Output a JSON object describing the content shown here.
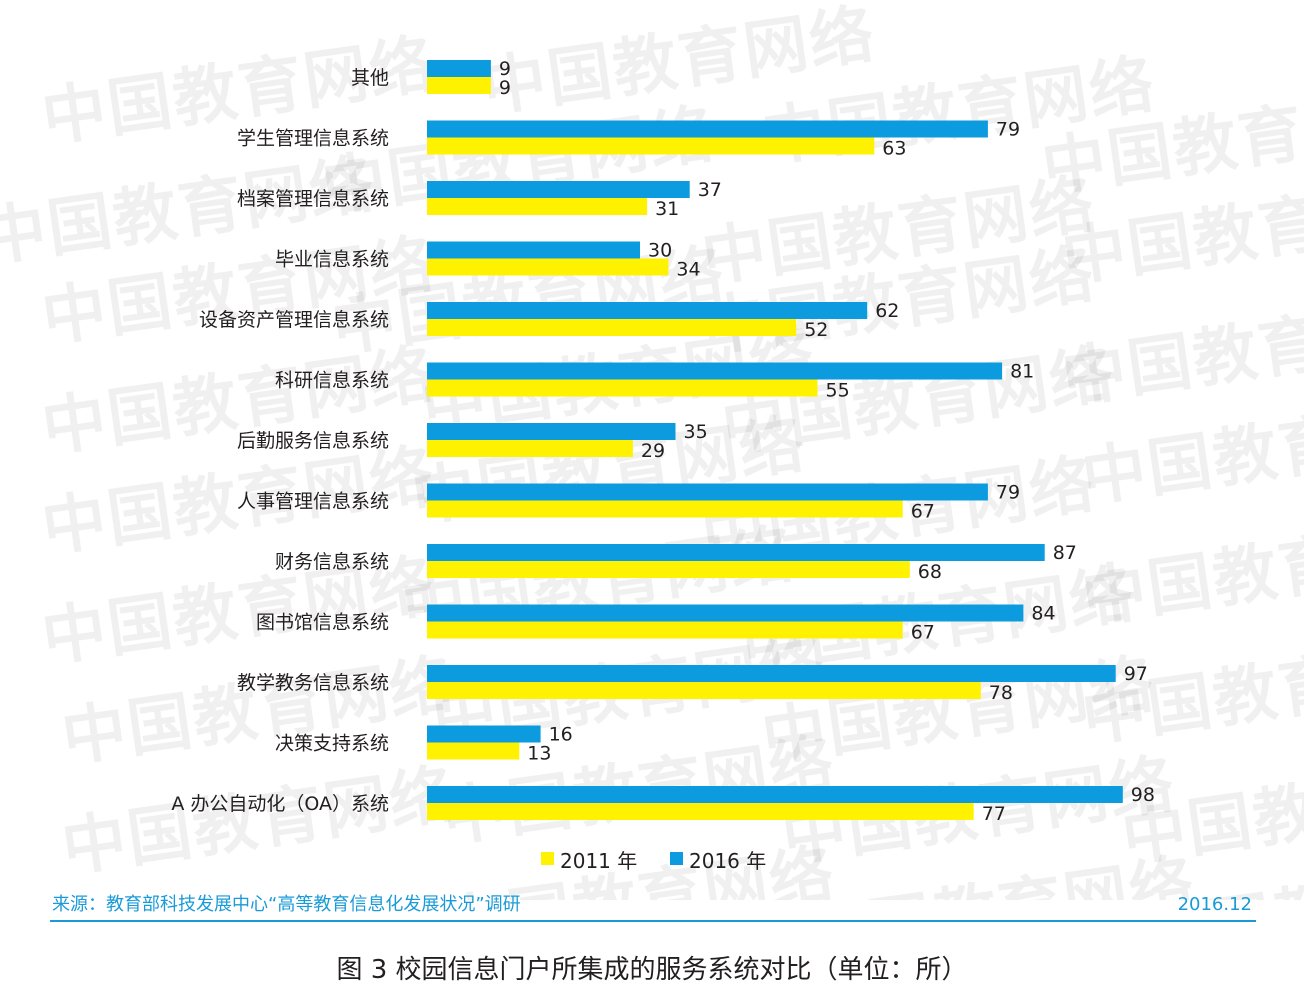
{
  "chart_data": {
    "type": "bar",
    "orientation": "horizontal",
    "title": "图 3  校园信息门户所集成的服务系统对比（单位：所）",
    "categories": [
      "其他",
      "学生管理信息系统",
      "档案管理信息系统",
      "毕业信息系统",
      "设备资产管理信息系统",
      "科研信息系统",
      "后勤服务信息系统",
      "人事管理信息系统",
      "财务信息系统",
      "图书馆信息系统",
      "教学教务信息系统",
      "决策支持系统",
      "A 办公自动化（OA）系统"
    ],
    "series": [
      {
        "name": "2016 年",
        "color": "#0b9bde",
        "values": [
          9,
          79,
          37,
          30,
          62,
          81,
          35,
          79,
          87,
          84,
          97,
          16,
          98
        ]
      },
      {
        "name": "2011 年",
        "color": "#fff200",
        "values": [
          9,
          63,
          31,
          34,
          52,
          55,
          29,
          67,
          68,
          67,
          78,
          13,
          77
        ]
      }
    ],
    "legend": [
      "2011 年",
      "2016 年"
    ],
    "legend_placement": "bottom-center",
    "xlim": [
      0,
      98
    ],
    "grid": false,
    "source": "来源：教育部科技发展中心“高等教育信息化发展状况”调研",
    "date": "2016.12"
  },
  "watermark_text": "中国教育网络"
}
